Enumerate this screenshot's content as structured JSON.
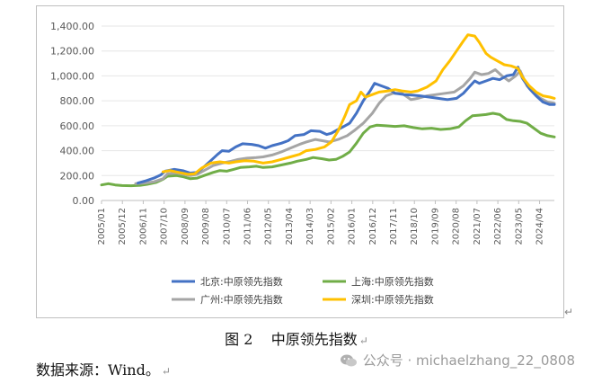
{
  "chart_data": {
    "type": "line",
    "title": "",
    "xlabel": "",
    "ylabel": "",
    "ylim": [
      0,
      1400
    ],
    "y_ticks": [
      "0.00",
      "200.00",
      "400.00",
      "600.00",
      "800.00",
      "1,000.00",
      "1,200.00",
      "1,400.00"
    ],
    "y_tick_values": [
      0,
      200,
      400,
      600,
      800,
      1000,
      1200,
      1400
    ],
    "x_range": [
      2005.0,
      2024.9
    ],
    "x_ticks": [
      "2005/01",
      "2005/12",
      "2006/11",
      "2007/10",
      "2008/09",
      "2009/08",
      "2010/07",
      "2011/06",
      "2012/05",
      "2013/04",
      "2014/03",
      "2015/02",
      "2016/01",
      "2016/12",
      "2017/11",
      "2018/10",
      "2019/09",
      "2020/08",
      "2021/07",
      "2022/06",
      "2023/05",
      "2024/04"
    ],
    "x_tick_values": [
      2005.0,
      2005.917,
      2006.833,
      2007.75,
      2008.667,
      2009.583,
      2010.5,
      2011.417,
      2012.333,
      2013.25,
      2014.167,
      2015.083,
      2016.0,
      2016.917,
      2017.833,
      2018.75,
      2019.667,
      2020.583,
      2021.5,
      2022.417,
      2023.333,
      2024.25
    ],
    "grid": true,
    "legend_position": "bottom",
    "series": [
      {
        "name": "北京:中原领先指数",
        "color": "#4472C4",
        "points": [
          [
            2006.6,
            140
          ],
          [
            2006.9,
            155
          ],
          [
            2007.3,
            180
          ],
          [
            2007.6,
            205
          ],
          [
            2007.8,
            235
          ],
          [
            2008.2,
            250
          ],
          [
            2008.6,
            238
          ],
          [
            2008.9,
            220
          ],
          [
            2009.2,
            225
          ],
          [
            2009.5,
            270
          ],
          [
            2009.8,
            320
          ],
          [
            2010.1,
            370
          ],
          [
            2010.3,
            400
          ],
          [
            2010.6,
            395
          ],
          [
            2010.9,
            430
          ],
          [
            2011.2,
            455
          ],
          [
            2011.6,
            450
          ],
          [
            2011.9,
            440
          ],
          [
            2012.2,
            420
          ],
          [
            2012.5,
            440
          ],
          [
            2012.9,
            460
          ],
          [
            2013.2,
            480
          ],
          [
            2013.5,
            520
          ],
          [
            2013.9,
            530
          ],
          [
            2014.2,
            560
          ],
          [
            2014.6,
            555
          ],
          [
            2014.9,
            530
          ],
          [
            2015.1,
            540
          ],
          [
            2015.4,
            570
          ],
          [
            2015.7,
            600
          ],
          [
            2015.9,
            620
          ],
          [
            2016.2,
            700
          ],
          [
            2016.5,
            800
          ],
          [
            2016.8,
            880
          ],
          [
            2017.0,
            940
          ],
          [
            2017.3,
            920
          ],
          [
            2017.6,
            900
          ],
          [
            2017.9,
            860
          ],
          [
            2018.3,
            850
          ],
          [
            2018.7,
            845
          ],
          [
            2019.0,
            840
          ],
          [
            2019.4,
            830
          ],
          [
            2019.8,
            820
          ],
          [
            2020.2,
            810
          ],
          [
            2020.6,
            820
          ],
          [
            2020.9,
            860
          ],
          [
            2021.2,
            920
          ],
          [
            2021.4,
            960
          ],
          [
            2021.6,
            940
          ],
          [
            2021.9,
            960
          ],
          [
            2022.2,
            980
          ],
          [
            2022.5,
            970
          ],
          [
            2022.8,
            1000
          ],
          [
            2023.1,
            1010
          ],
          [
            2023.3,
            1070
          ],
          [
            2023.5,
            980
          ],
          [
            2023.8,
            900
          ],
          [
            2024.1,
            840
          ],
          [
            2024.4,
            790
          ],
          [
            2024.7,
            770
          ],
          [
            2024.9,
            770
          ]
        ]
      },
      {
        "name": "上海:中原领先指数",
        "color": "#70AD47",
        "points": [
          [
            2005.0,
            125
          ],
          [
            2005.3,
            135
          ],
          [
            2005.6,
            125
          ],
          [
            2005.9,
            120
          ],
          [
            2006.3,
            118
          ],
          [
            2006.7,
            122
          ],
          [
            2007.0,
            130
          ],
          [
            2007.4,
            145
          ],
          [
            2007.7,
            170
          ],
          [
            2007.9,
            195
          ],
          [
            2008.3,
            200
          ],
          [
            2008.6,
            190
          ],
          [
            2008.9,
            175
          ],
          [
            2009.2,
            180
          ],
          [
            2009.5,
            200
          ],
          [
            2009.9,
            225
          ],
          [
            2010.2,
            240
          ],
          [
            2010.5,
            235
          ],
          [
            2010.8,
            250
          ],
          [
            2011.1,
            265
          ],
          [
            2011.5,
            270
          ],
          [
            2011.8,
            275
          ],
          [
            2012.1,
            265
          ],
          [
            2012.5,
            270
          ],
          [
            2012.9,
            285
          ],
          [
            2013.3,
            300
          ],
          [
            2013.6,
            315
          ],
          [
            2014.0,
            330
          ],
          [
            2014.3,
            345
          ],
          [
            2014.7,
            335
          ],
          [
            2015.0,
            325
          ],
          [
            2015.3,
            330
          ],
          [
            2015.6,
            355
          ],
          [
            2015.9,
            390
          ],
          [
            2016.2,
            460
          ],
          [
            2016.5,
            540
          ],
          [
            2016.8,
            590
          ],
          [
            2017.1,
            605
          ],
          [
            2017.5,
            600
          ],
          [
            2017.9,
            595
          ],
          [
            2018.3,
            600
          ],
          [
            2018.7,
            585
          ],
          [
            2019.1,
            575
          ],
          [
            2019.5,
            580
          ],
          [
            2019.9,
            570
          ],
          [
            2020.3,
            575
          ],
          [
            2020.7,
            590
          ],
          [
            2021.0,
            640
          ],
          [
            2021.3,
            680
          ],
          [
            2021.6,
            685
          ],
          [
            2021.9,
            690
          ],
          [
            2022.2,
            700
          ],
          [
            2022.5,
            690
          ],
          [
            2022.8,
            650
          ],
          [
            2023.1,
            640
          ],
          [
            2023.4,
            635
          ],
          [
            2023.7,
            620
          ],
          [
            2024.0,
            580
          ],
          [
            2024.3,
            540
          ],
          [
            2024.6,
            520
          ],
          [
            2024.9,
            510
          ]
        ]
      },
      {
        "name": "广州:中原领先指数",
        "color": "#A5A5A5",
        "points": [
          [
            2006.5,
            135
          ],
          [
            2006.9,
            140
          ],
          [
            2007.3,
            150
          ],
          [
            2007.7,
            175
          ],
          [
            2007.9,
            215
          ],
          [
            2008.3,
            220
          ],
          [
            2008.6,
            210
          ],
          [
            2008.9,
            200
          ],
          [
            2009.2,
            210
          ],
          [
            2009.6,
            250
          ],
          [
            2009.9,
            280
          ],
          [
            2010.3,
            300
          ],
          [
            2010.7,
            315
          ],
          [
            2011.0,
            330
          ],
          [
            2011.4,
            340
          ],
          [
            2011.8,
            345
          ],
          [
            2012.1,
            350
          ],
          [
            2012.5,
            365
          ],
          [
            2012.9,
            390
          ],
          [
            2013.3,
            420
          ],
          [
            2013.7,
            450
          ],
          [
            2014.0,
            470
          ],
          [
            2014.4,
            490
          ],
          [
            2014.7,
            480
          ],
          [
            2015.0,
            470
          ],
          [
            2015.4,
            490
          ],
          [
            2015.8,
            520
          ],
          [
            2016.1,
            560
          ],
          [
            2016.5,
            620
          ],
          [
            2016.9,
            700
          ],
          [
            2017.2,
            780
          ],
          [
            2017.5,
            840
          ],
          [
            2017.8,
            860
          ],
          [
            2018.2,
            860
          ],
          [
            2018.6,
            810
          ],
          [
            2018.9,
            820
          ],
          [
            2019.3,
            840
          ],
          [
            2019.7,
            850
          ],
          [
            2020.1,
            860
          ],
          [
            2020.5,
            870
          ],
          [
            2020.9,
            920
          ],
          [
            2021.2,
            980
          ],
          [
            2021.4,
            1030
          ],
          [
            2021.7,
            1010
          ],
          [
            2022.0,
            1020
          ],
          [
            2022.3,
            1050
          ],
          [
            2022.6,
            1000
          ],
          [
            2022.9,
            960
          ],
          [
            2023.2,
            1000
          ],
          [
            2023.4,
            1040
          ],
          [
            2023.7,
            920
          ],
          [
            2024.0,
            860
          ],
          [
            2024.3,
            820
          ],
          [
            2024.6,
            790
          ],
          [
            2024.9,
            780
          ]
        ]
      },
      {
        "name": "深圳:中原领先指数",
        "color": "#FFC000",
        "points": [
          [
            2007.7,
            230
          ],
          [
            2008.0,
            240
          ],
          [
            2008.4,
            225
          ],
          [
            2008.8,
            210
          ],
          [
            2009.1,
            215
          ],
          [
            2009.4,
            260
          ],
          [
            2009.8,
            300
          ],
          [
            2010.2,
            310
          ],
          [
            2010.6,
            300
          ],
          [
            2010.9,
            310
          ],
          [
            2011.3,
            320
          ],
          [
            2011.7,
            315
          ],
          [
            2012.1,
            300
          ],
          [
            2012.5,
            310
          ],
          [
            2012.9,
            330
          ],
          [
            2013.3,
            350
          ],
          [
            2013.7,
            370
          ],
          [
            2014.0,
            400
          ],
          [
            2014.4,
            410
          ],
          [
            2014.8,
            430
          ],
          [
            2015.1,
            470
          ],
          [
            2015.4,
            560
          ],
          [
            2015.7,
            680
          ],
          [
            2015.9,
            770
          ],
          [
            2016.2,
            800
          ],
          [
            2016.4,
            870
          ],
          [
            2016.6,
            830
          ],
          [
            2016.9,
            850
          ],
          [
            2017.2,
            870
          ],
          [
            2017.6,
            880
          ],
          [
            2017.9,
            890
          ],
          [
            2018.2,
            880
          ],
          [
            2018.6,
            870
          ],
          [
            2018.9,
            880
          ],
          [
            2019.3,
            910
          ],
          [
            2019.7,
            960
          ],
          [
            2020.0,
            1050
          ],
          [
            2020.3,
            1120
          ],
          [
            2020.6,
            1200
          ],
          [
            2020.9,
            1280
          ],
          [
            2021.1,
            1330
          ],
          [
            2021.4,
            1320
          ],
          [
            2021.6,
            1270
          ],
          [
            2021.9,
            1180
          ],
          [
            2022.1,
            1150
          ],
          [
            2022.4,
            1120
          ],
          [
            2022.7,
            1090
          ],
          [
            2023.0,
            1080
          ],
          [
            2023.3,
            1060
          ],
          [
            2023.5,
            990
          ],
          [
            2023.8,
            920
          ],
          [
            2024.1,
            870
          ],
          [
            2024.4,
            840
          ],
          [
            2024.7,
            830
          ],
          [
            2024.9,
            820
          ]
        ]
      }
    ]
  },
  "caption": {
    "figure": "图 2",
    "title": "中原领先指数",
    "end_mark": "↵"
  },
  "source": {
    "label": "数据来源：Wind。",
    "end_mark": "↵"
  },
  "watermark": {
    "text": "公众号 · michaelzhang_22_0808"
  },
  "frame_mark": "↵"
}
